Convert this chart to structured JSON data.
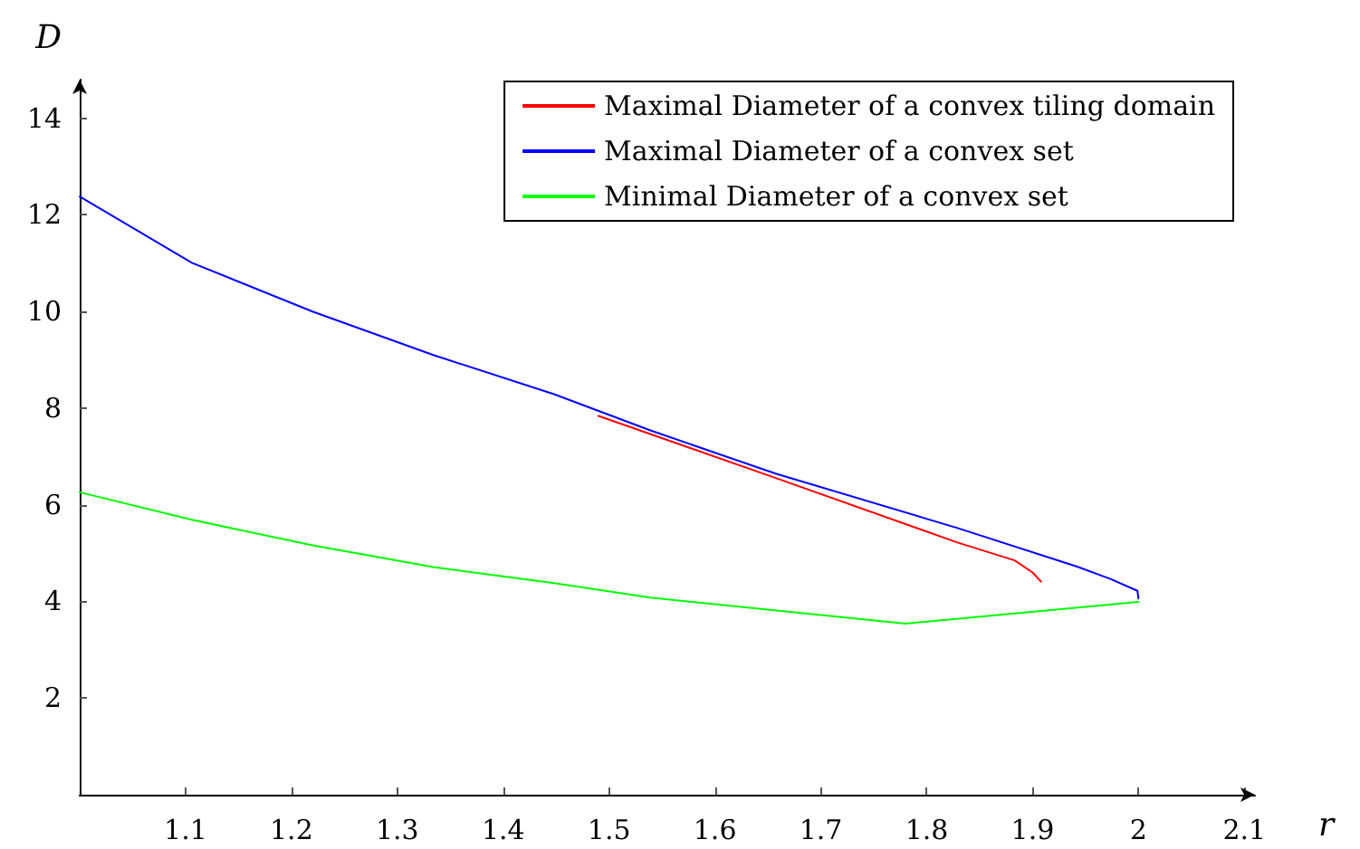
{
  "chart_data": {
    "type": "line",
    "xlabel": "r",
    "ylabel": "D",
    "xlim": [
      1,
      2.11
    ],
    "ylim": [
      0,
      14.8
    ],
    "xticks": [
      1.1,
      1.2,
      1.3,
      1.4,
      1.5,
      1.6,
      1.7,
      1.8,
      1.9,
      2,
      2.1
    ],
    "yticks": [
      2,
      4,
      6,
      8,
      10,
      12,
      14
    ],
    "grid": false,
    "legend": "top right",
    "marker": "none",
    "line_style": "solid",
    "series": [
      {
        "name": "Maximal Diameter of a convex tiling domain",
        "color": "#ff0000",
        "x": [
          1.49,
          1.658,
          1.829,
          1.883,
          1.9,
          1.908
        ],
        "values": [
          7.84,
          6.55,
          5.22,
          4.85,
          4.6,
          4.41
        ]
      },
      {
        "name": "Maximal Diameter of a convex set",
        "color": "#0000ff",
        "x": [
          1,
          1.106,
          1.22,
          1.334,
          1.448,
          1.539,
          1.658,
          1.829,
          1.942,
          1.974,
          1.999,
          2
        ],
        "values": [
          12.38,
          11.01,
          10.0,
          9.1,
          8.29,
          7.54,
          6.64,
          5.52,
          4.72,
          4.46,
          4.22,
          4.06
        ]
      },
      {
        "name": "Minimal Diameter of a convex set",
        "color": "#00ff00",
        "x": [
          1,
          1.106,
          1.22,
          1.334,
          1.448,
          1.539,
          1.78,
          2
        ],
        "values": [
          6.26,
          5.69,
          5.16,
          4.71,
          4.38,
          4.08,
          3.54,
          3.99
        ]
      }
    ]
  }
}
